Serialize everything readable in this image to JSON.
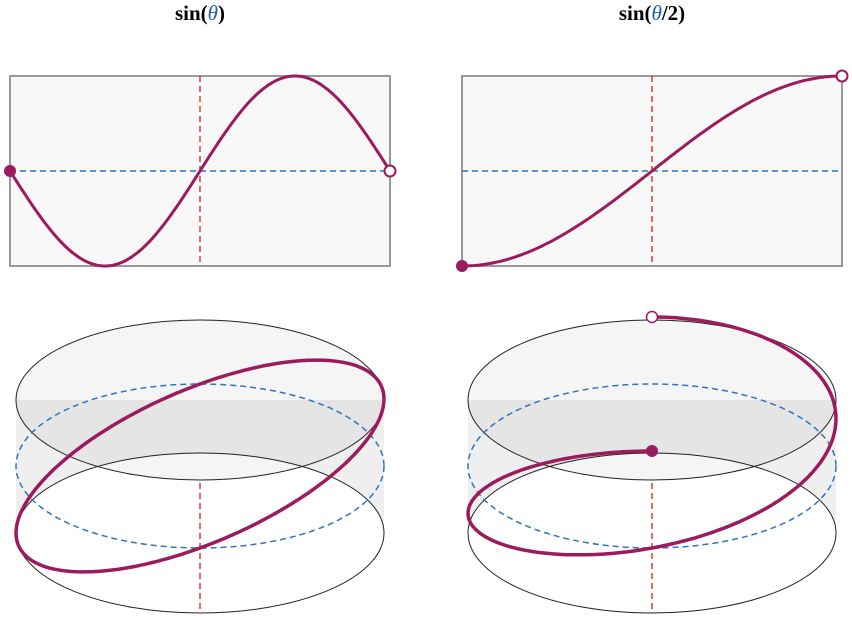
{
  "panels": [
    {
      "title": {
        "before": "sin(",
        "variable": "θ",
        "after": ")"
      }
    },
    {
      "title": {
        "before": "sin(",
        "variable": "θ",
        "after": "/2)"
      }
    }
  ]
}
